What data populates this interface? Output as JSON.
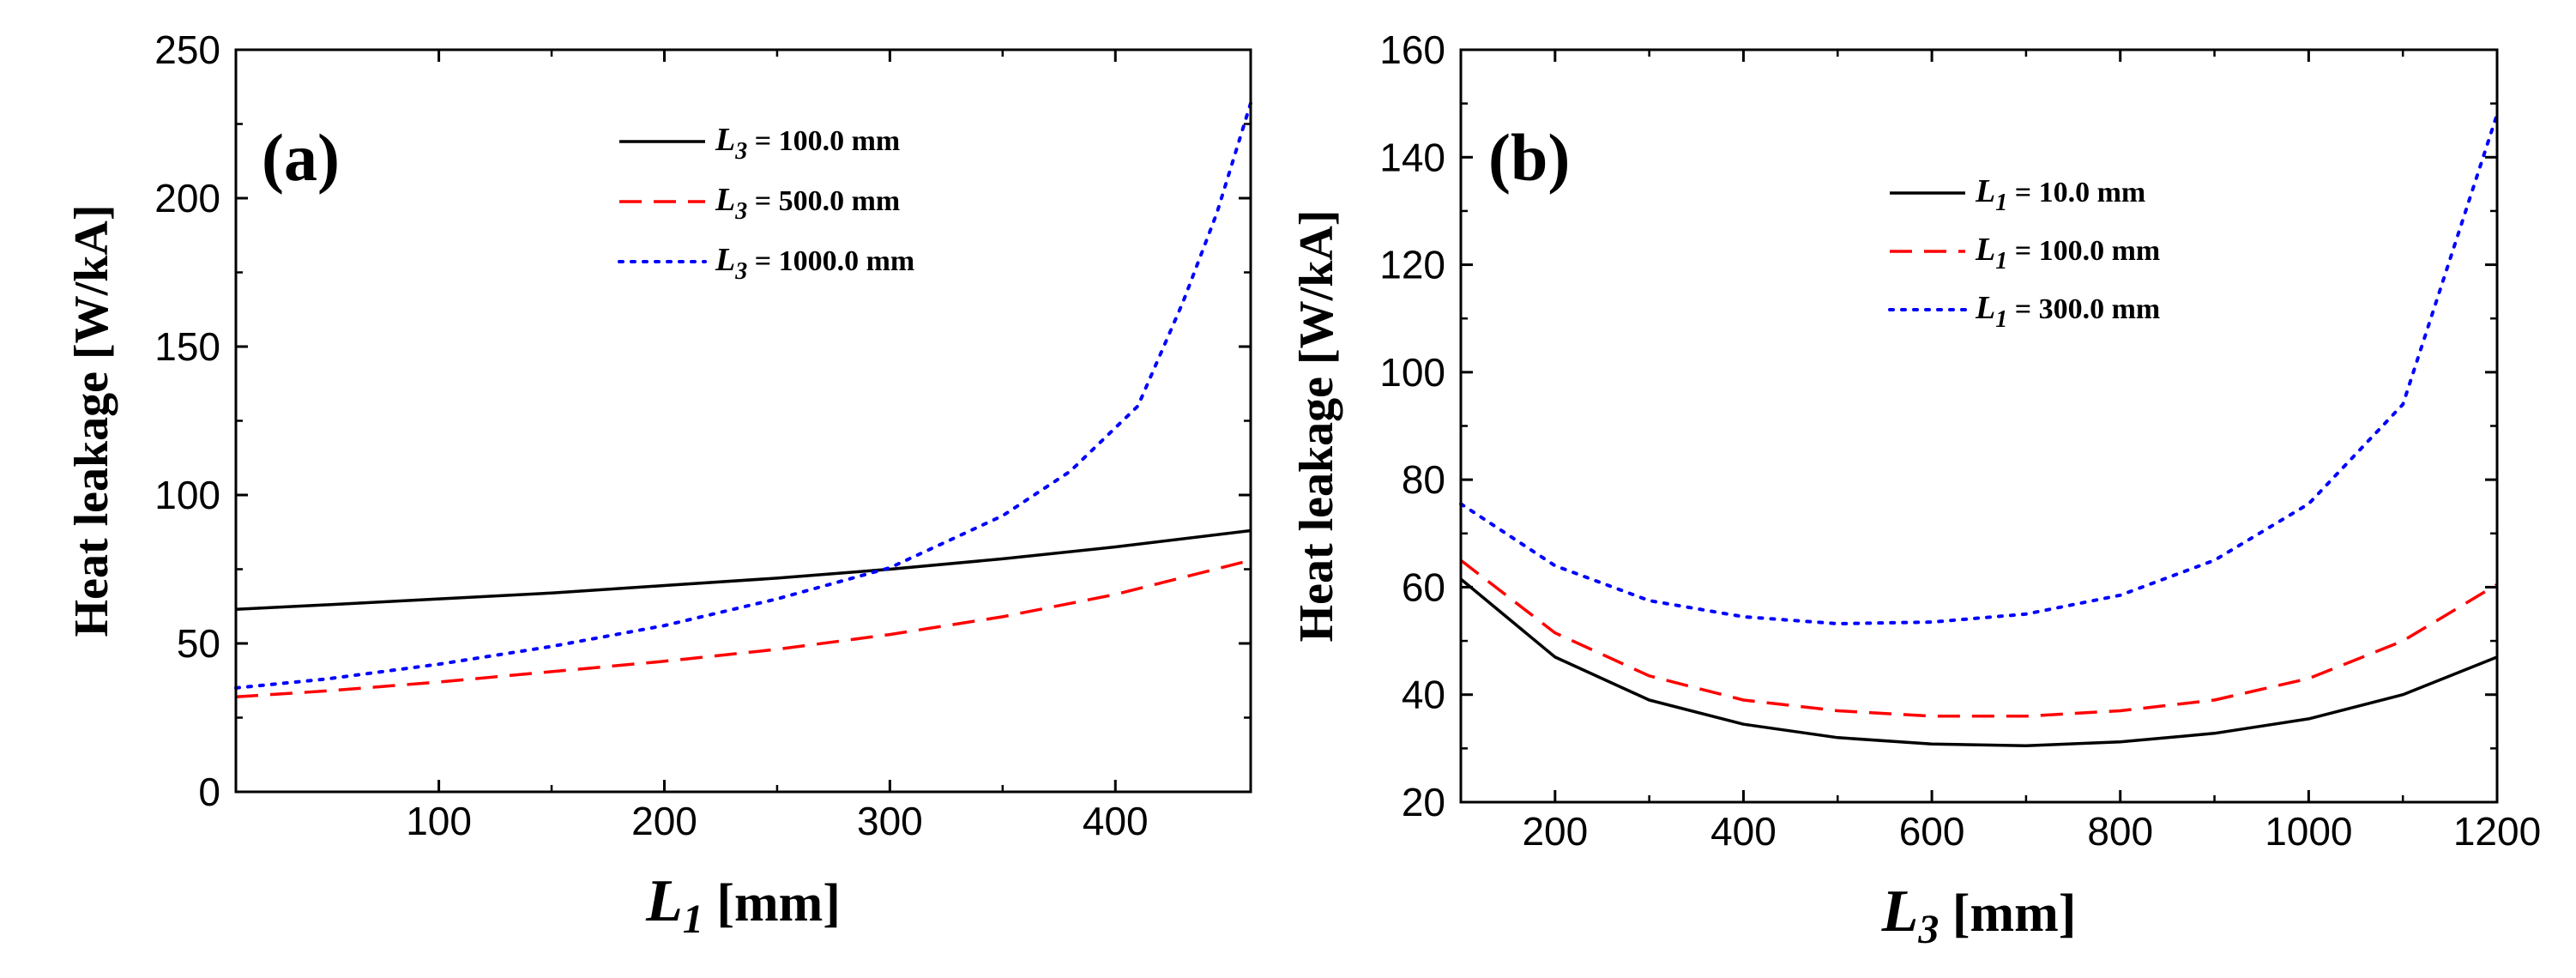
{
  "chart_data": [
    {
      "type": "line",
      "panel_label": "(a)",
      "xlabel_var": "L",
      "xlabel_sub": "1",
      "xlabel_unit": " [mm]",
      "ylabel": "Heat leakage  [W/kA]",
      "xlim": [
        10,
        460
      ],
      "ylim": [
        0,
        250
      ],
      "xticks": [
        100,
        200,
        300,
        400
      ],
      "yticks": [
        0,
        50,
        100,
        150,
        200,
        250
      ],
      "grid": false,
      "legend_position": "top-right",
      "series": [
        {
          "name_var": "L",
          "name_sub": "3",
          "name_rest": " = 100.0 mm",
          "color": "#000000",
          "dash": "solid",
          "x": [
            10,
            50,
            100,
            150,
            200,
            250,
            300,
            350,
            400,
            460
          ],
          "y": [
            61.5,
            63,
            65,
            67,
            69.5,
            72,
            75,
            78.5,
            82.5,
            88
          ]
        },
        {
          "name_var": "L",
          "name_sub": "3",
          "name_rest": " = 500.0 mm",
          "color": "#ff0000",
          "dash": "dashed",
          "x": [
            10,
            50,
            100,
            150,
            200,
            250,
            300,
            350,
            400,
            460
          ],
          "y": [
            32,
            34,
            37,
            40.5,
            44,
            48,
            53,
            59,
            66.5,
            78
          ]
        },
        {
          "name_var": "L",
          "name_sub": "3",
          "name_rest": " = 1000.0 mm",
          "color": "#0000ff",
          "dash": "dotted",
          "x": [
            10,
            50,
            100,
            150,
            200,
            250,
            300,
            350,
            380,
            410,
            430,
            445,
            460
          ],
          "y": [
            35,
            38,
            43,
            49,
            56,
            65,
            75.5,
            93,
            108,
            130,
            165,
            195,
            232
          ]
        }
      ]
    },
    {
      "type": "line",
      "panel_label": "(b)",
      "xlabel_var": "L",
      "xlabel_sub": "3",
      "xlabel_unit": " [mm]",
      "ylabel": "Heat leakage  [W/kA]",
      "xlim": [
        100,
        1200
      ],
      "ylim": [
        20,
        160
      ],
      "xticks": [
        200,
        400,
        600,
        800,
        1000,
        1200
      ],
      "yticks": [
        20,
        40,
        60,
        80,
        100,
        120,
        140,
        160
      ],
      "grid": false,
      "legend_position": "top-right",
      "series": [
        {
          "name_var": "L",
          "name_sub": "1",
          "name_rest": " = 10.0 mm",
          "color": "#000000",
          "dash": "solid",
          "x": [
            100,
            200,
            300,
            400,
            500,
            600,
            700,
            800,
            900,
            1000,
            1100,
            1200
          ],
          "y": [
            61.5,
            47,
            39,
            34.5,
            32,
            30.8,
            30.5,
            31.2,
            32.8,
            35.5,
            40,
            47
          ]
        },
        {
          "name_var": "L",
          "name_sub": "1",
          "name_rest": " = 100.0 mm",
          "color": "#ff0000",
          "dash": "dashed",
          "x": [
            100,
            200,
            300,
            400,
            500,
            600,
            700,
            800,
            900,
            1000,
            1100,
            1200
          ],
          "y": [
            65,
            51.5,
            43.5,
            39,
            37,
            36,
            36,
            37,
            39,
            43,
            50,
            60.5
          ]
        },
        {
          "name_var": "L",
          "name_sub": "1",
          "name_rest": " = 300.0 mm",
          "color": "#0000ff",
          "dash": "dotted",
          "x": [
            100,
            200,
            300,
            400,
            500,
            600,
            700,
            800,
            900,
            1000,
            1100,
            1200
          ],
          "y": [
            75.5,
            64,
            57.5,
            54.5,
            53.2,
            53.5,
            55,
            58.5,
            65,
            75.5,
            94,
            148
          ]
        }
      ]
    }
  ]
}
